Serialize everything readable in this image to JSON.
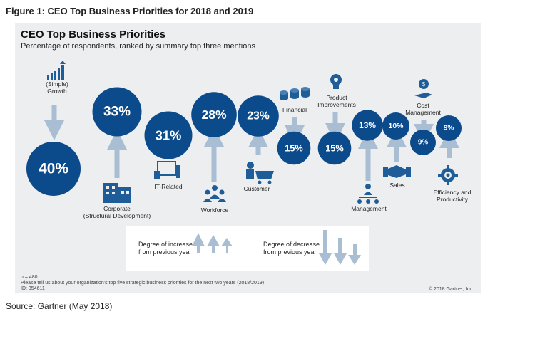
{
  "figure_title": "Figure 1: CEO Top Business Priorities for 2018 and 2019",
  "source": "Source: Gartner (May 2018)",
  "colors": {
    "bubble": "#0b4a8b",
    "arrow": "#a9bdd3",
    "icon": "#1f5d99",
    "panel": "#eceef0"
  },
  "chart_data": {
    "type": "bubble",
    "title": "CEO Top Business Priorities",
    "subtitle": "Percentage of respondents, ranked by summary top three mentions",
    "items": [
      {
        "label": "(Simple)\nGrowth",
        "value": 40,
        "value_label": "40%",
        "change": "decrease",
        "icon": "growth-chart-icon"
      },
      {
        "label": "Corporate\n(Structural Development)",
        "value": 33,
        "value_label": "33%",
        "change": "increase",
        "icon": "office-building-icon"
      },
      {
        "label": "IT-Related",
        "value": 31,
        "value_label": "31%",
        "change": "none",
        "icon": "computer-icon"
      },
      {
        "label": "Workforce",
        "value": 28,
        "value_label": "28%",
        "change": "increase",
        "icon": "workforce-icon"
      },
      {
        "label": "Customer",
        "value": 23,
        "value_label": "23%",
        "change": "increase",
        "icon": "shopping-cart-icon"
      },
      {
        "label": "Financial",
        "value": 15,
        "value_label": "15%",
        "change": "decrease",
        "icon": "coins-icon"
      },
      {
        "label": "Product\nImprovements",
        "value": 15,
        "value_label": "15%",
        "change": "decrease",
        "icon": "lightbulb-icon"
      },
      {
        "label": "Management",
        "value": 13,
        "value_label": "13%",
        "change": "increase",
        "icon": "org-chart-icon"
      },
      {
        "label": "Sales",
        "value": 10,
        "value_label": "10%",
        "change": "increase",
        "icon": "handshake-icon"
      },
      {
        "label": "Cost\nManagement",
        "value": 9,
        "value_label": "9%",
        "change": "decrease",
        "icon": "hand-coin-icon"
      },
      {
        "label": "Efficiency and\nProductivity",
        "value": 9,
        "value_label": "9%",
        "change": "increase",
        "icon": "gear-person-icon"
      }
    ],
    "legend": [
      {
        "label": "Degree of increase\nfrom previous year",
        "direction": "up"
      },
      {
        "label": "Degree of decrease\nfrom previous year",
        "direction": "down"
      }
    ],
    "notes": {
      "n": "n = 480",
      "question": "Please tell us about your organization's top five strategic business priorities for the next two years (2018/2019)",
      "id": "ID: 354611",
      "copyright": "© 2018 Gartner, Inc."
    }
  }
}
